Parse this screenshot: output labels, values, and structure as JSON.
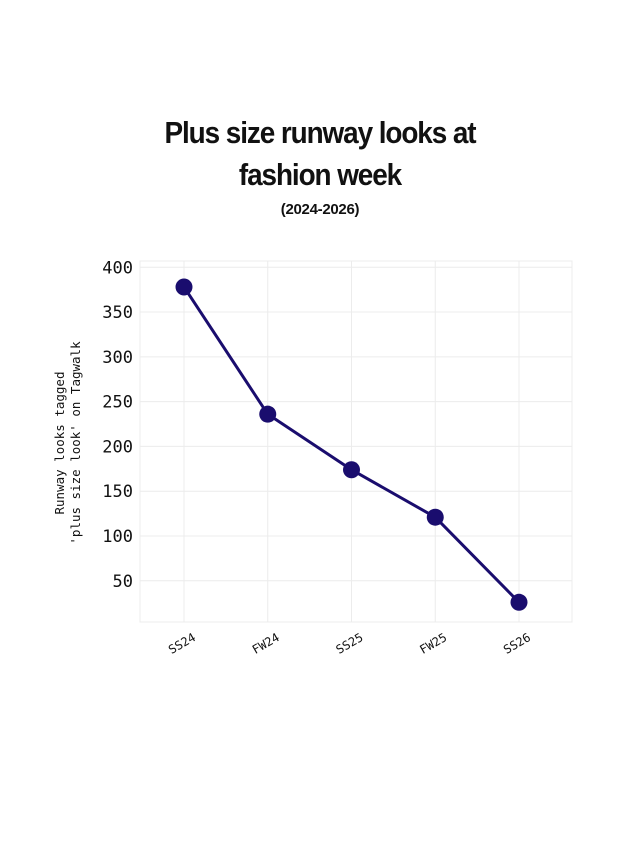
{
  "chart_data": {
    "type": "line",
    "title_lines": [
      "Plus size runway looks at",
      "fashion week"
    ],
    "subtitle": "(2024-2026)",
    "ylabel_lines": [
      "Runway looks tagged",
      "'plus size look' on Tagwalk"
    ],
    "xlabel": "",
    "categories": [
      "SS24",
      "FW24",
      "SS25",
      "FW25",
      "SS26"
    ],
    "series": [
      {
        "values": [
          378,
          236,
          174,
          121,
          26
        ]
      }
    ],
    "yticks": [
      50,
      100,
      150,
      200,
      250,
      300,
      350,
      400
    ],
    "ylim": [
      4,
      407
    ],
    "grid": true,
    "legend": "none",
    "colors": {
      "line": "#1a0d6e",
      "marker": "#1a0d6e",
      "grid": "#ececec",
      "text": "#111111"
    }
  }
}
